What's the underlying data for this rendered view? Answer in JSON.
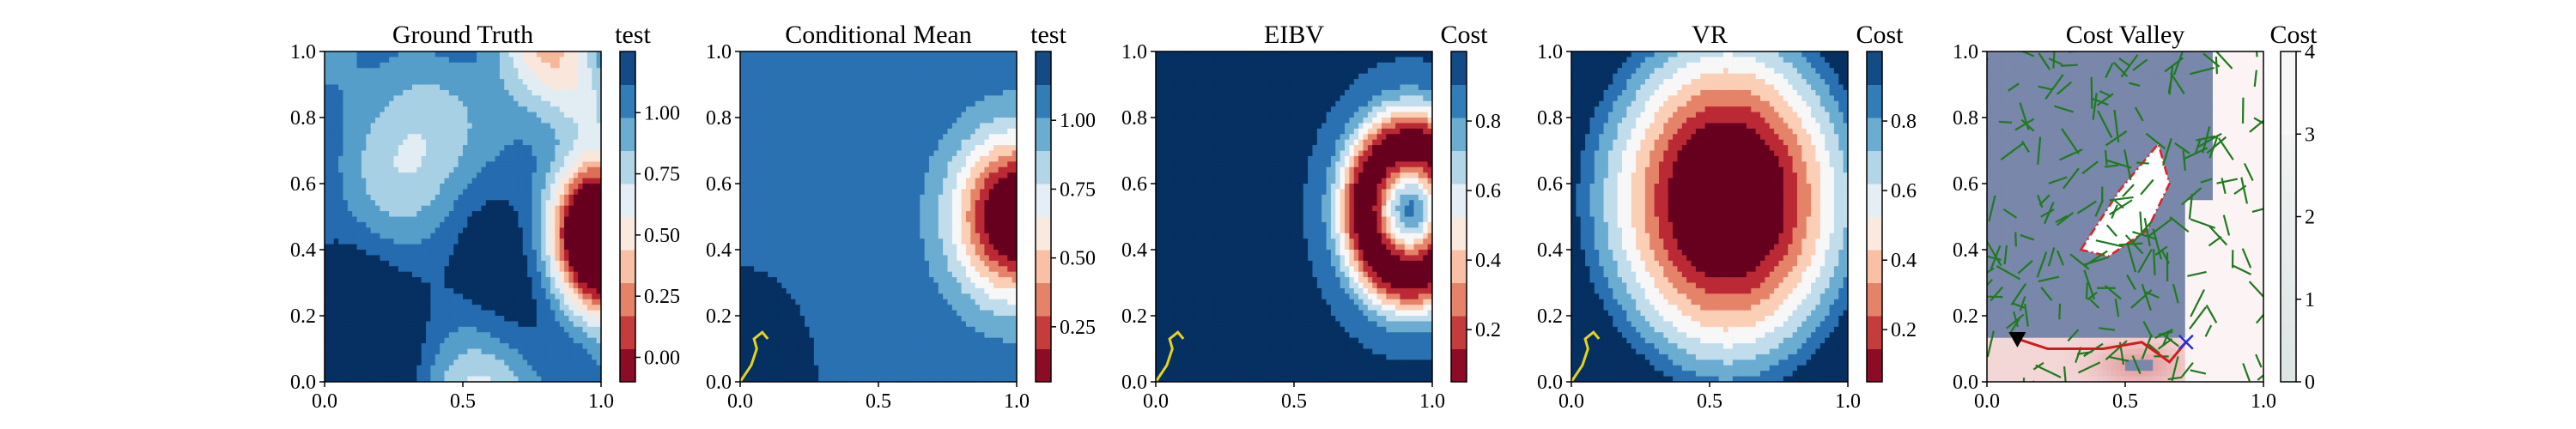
{
  "chart_data": [
    {
      "type": "heatmap",
      "title": "Ground Truth",
      "colorbar_label": "test",
      "colormap": "RdBu",
      "xlim": [
        0.0,
        1.0
      ],
      "ylim": [
        0.0,
        1.0
      ],
      "xticks": [
        "0.0",
        "0.5",
        "1.0"
      ],
      "yticks": [
        "0.0",
        "0.2",
        "0.4",
        "0.6",
        "0.8",
        "1.0"
      ],
      "cbar_ticks": [
        "0.00",
        "0.25",
        "0.50",
        "0.75",
        "1.00"
      ],
      "cbar_range": [
        -0.1,
        1.25
      ]
    },
    {
      "type": "heatmap",
      "title": "Conditional Mean",
      "colorbar_label": "test",
      "colormap": "RdBu",
      "xlim": [
        0.0,
        1.0
      ],
      "ylim": [
        0.0,
        1.0
      ],
      "xticks": [
        "0.0",
        "0.5",
        "1.0"
      ],
      "yticks": [
        "0.0",
        "0.2",
        "0.4",
        "0.6",
        "0.8",
        "1.0"
      ],
      "cbar_ticks": [
        "0.25",
        "0.50",
        "0.75",
        "1.00"
      ],
      "cbar_range": [
        0.05,
        1.25
      ],
      "path_color": "#e6d21e"
    },
    {
      "type": "heatmap",
      "title": "EIBV",
      "colorbar_label": "Cost",
      "colormap": "RdBu",
      "xlim": [
        0.0,
        1.0
      ],
      "ylim": [
        0.0,
        1.0
      ],
      "xticks": [
        "0.0",
        "0.5",
        "1.0"
      ],
      "yticks": [
        "0.0",
        "0.2",
        "0.4",
        "0.6",
        "0.8",
        "1.0"
      ],
      "cbar_ticks": [
        "0.2",
        "0.4",
        "0.6",
        "0.8"
      ],
      "cbar_range": [
        0.05,
        1.0
      ],
      "path_color": "#e6d21e"
    },
    {
      "type": "heatmap",
      "title": "VR",
      "colorbar_label": "Cost",
      "colormap": "RdBu",
      "xlim": [
        0.0,
        1.0
      ],
      "ylim": [
        0.0,
        1.0
      ],
      "xticks": [
        "0.0",
        "0.5",
        "1.0"
      ],
      "yticks": [
        "0.0",
        "0.2",
        "0.4",
        "0.6",
        "0.8",
        "1.0"
      ],
      "cbar_ticks": [
        "0.2",
        "0.4",
        "0.6",
        "0.8"
      ],
      "cbar_range": [
        0.05,
        1.0
      ],
      "path_color": "#e6d21e"
    },
    {
      "type": "heatmap",
      "title": "Cost Valley",
      "colorbar_label": "Cost",
      "colormap": "white-to-red",
      "xlim": [
        0.0,
        1.0
      ],
      "ylim": [
        0.0,
        1.0
      ],
      "xticks": [
        "0.0",
        "0.5",
        "1.0"
      ],
      "yticks": [
        "0.0",
        "0.2",
        "0.4",
        "0.6",
        "0.8",
        "1.0"
      ],
      "cbar_ticks": [
        "0",
        "1",
        "2",
        "3",
        "4"
      ],
      "cbar_range": [
        0,
        4
      ],
      "tree_color": "#1f7a1f",
      "obstacle_color": "#e02020",
      "start_marker": "black triangle",
      "goal_marker": "blue x"
    }
  ]
}
